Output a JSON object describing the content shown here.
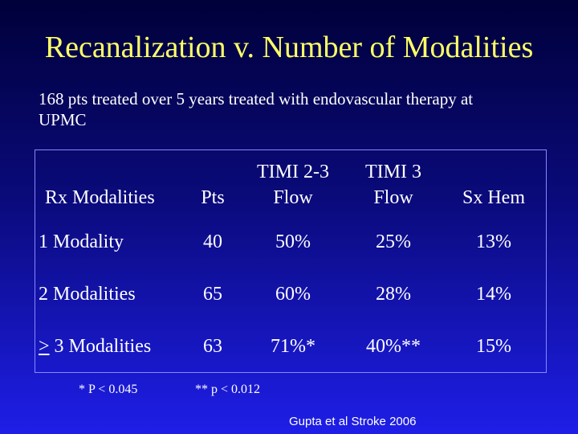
{
  "slide": {
    "title": "Recanalization v. Number of Modalities",
    "subtitle": "168 pts treated over 5 years  treated with endovascular therapy at UPMC"
  },
  "table": {
    "headers": {
      "modalities": "Rx Modalities",
      "pts": "Pts",
      "timi23_line1": "TIMI 2-3",
      "timi23_line2": "Flow",
      "timi3_line1": "TIMI 3",
      "timi3_line2": "Flow",
      "sxhem": "Sx Hem"
    },
    "rows": [
      {
        "modality": "1 Modality",
        "pts": "40",
        "timi23": "50%",
        "timi3": "25%",
        "sxhem": "13%"
      },
      {
        "modality": "2 Modalities",
        "pts": "65",
        "timi23": "60%",
        "timi3": "28%",
        "sxhem": "14%"
      },
      {
        "modality_prefix": ">",
        "modality": " 3 Modalities",
        "pts": "63",
        "timi23": "71%*",
        "timi3": "40%**",
        "sxhem": "15%"
      }
    ]
  },
  "footnotes": {
    "p1": "* P < 0.045",
    "p2": "** p < 0.012"
  },
  "citation": "Gupta et al  Stroke 2006"
}
